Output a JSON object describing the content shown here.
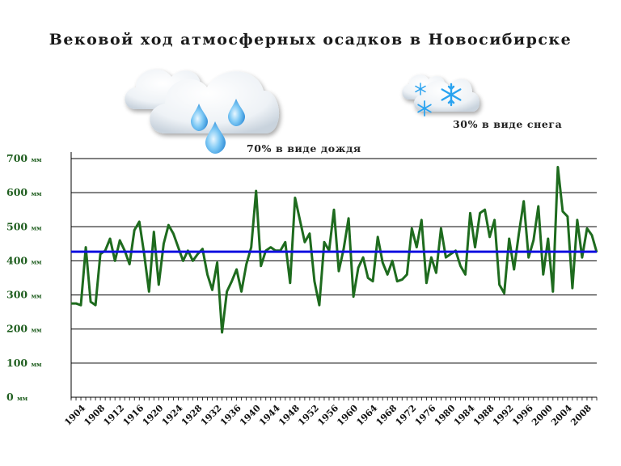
{
  "title": "Вековой ход атмосферных осадков в Новосибирске",
  "annotations": {
    "rain": "70% в виде дождя",
    "snow": "30% в виде снега"
  },
  "icons": [
    "rain-cloud-icon",
    "snow-cloud-icon"
  ],
  "colors": {
    "series_line": "#1e6b1e",
    "mean_line": "#1010e0",
    "grid": "#000000",
    "tick_text": "#1f5e1f",
    "snowflake": "#2aa3f0",
    "raindrop": "#2f97e6"
  },
  "chart_data": {
    "type": "line",
    "title": "Вековой ход атмосферных осадков в Новосибирске",
    "xlabel": "",
    "ylabel": "",
    "y_unit": "мм",
    "ylim": [
      0,
      700
    ],
    "yticks": [
      0,
      100,
      200,
      300,
      400,
      500,
      600,
      700
    ],
    "xtick_labels": [
      "1904",
      "1908",
      "1912",
      "1916",
      "1920",
      "1924",
      "1928",
      "1932",
      "1936",
      "1940",
      "1944",
      "1948",
      "1952",
      "1956",
      "1960",
      "1964",
      "1968",
      "1972",
      "1976",
      "1980",
      "1984",
      "1988",
      "1992",
      "1996",
      "2000",
      "2004",
      "2008"
    ],
    "grid": true,
    "x": [
      1901,
      1902,
      1903,
      1904,
      1905,
      1906,
      1907,
      1908,
      1909,
      1910,
      1911,
      1912,
      1913,
      1914,
      1915,
      1916,
      1917,
      1918,
      1919,
      1920,
      1921,
      1922,
      1923,
      1924,
      1925,
      1926,
      1927,
      1928,
      1929,
      1930,
      1931,
      1932,
      1933,
      1934,
      1935,
      1936,
      1937,
      1938,
      1939,
      1940,
      1941,
      1942,
      1943,
      1944,
      1945,
      1946,
      1947,
      1948,
      1949,
      1950,
      1951,
      1952,
      1953,
      1954,
      1955,
      1956,
      1957,
      1958,
      1959,
      1960,
      1961,
      1962,
      1963,
      1964,
      1965,
      1966,
      1967,
      1968,
      1969,
      1970,
      1971,
      1972,
      1973,
      1974,
      1975,
      1976,
      1977,
      1978,
      1979,
      1980,
      1981,
      1982,
      1983,
      1984,
      1985,
      1986,
      1987,
      1988,
      1989,
      1990,
      1991,
      1992,
      1993,
      1994,
      1995,
      1996,
      1997,
      1998,
      1999,
      2000,
      2001,
      2002,
      2003,
      2004,
      2005,
      2006,
      2007,
      2008,
      2009
    ],
    "series": [
      {
        "values": [
          275,
          275,
          270,
          440,
          280,
          270,
          420,
          430,
          465,
          400,
          460,
          430,
          390,
          490,
          515,
          420,
          310,
          485,
          330,
          450,
          505,
          480,
          440,
          400,
          430,
          400,
          420,
          435,
          360,
          315,
          395,
          190,
          310,
          340,
          375,
          310,
          390,
          440,
          605,
          385,
          430,
          440,
          430,
          430,
          455,
          335,
          585,
          520,
          455,
          480,
          340,
          270,
          455,
          430,
          550,
          370,
          435,
          525,
          295,
          380,
          410,
          350,
          340,
          470,
          395,
          360,
          400,
          340,
          345,
          360,
          495,
          440,
          520,
          335,
          410,
          365,
          495,
          410,
          420,
          430,
          385,
          360,
          540,
          440,
          540,
          550,
          470,
          520,
          330,
          305,
          465,
          375,
          480,
          575,
          410,
          460,
          560,
          360,
          465,
          310,
          675,
          545,
          530,
          320,
          520,
          410,
          495,
          475,
          425
        ]
      },
      {
        "name": "mean",
        "values": [
          427,
          427,
          427,
          427,
          427,
          427,
          427,
          427,
          427,
          427,
          427,
          427,
          427,
          427,
          427,
          427,
          427,
          427,
          427,
          427,
          427,
          427,
          427,
          427,
          427,
          427,
          427,
          427,
          427,
          427,
          427,
          427,
          427,
          427,
          427,
          427,
          427,
          427,
          427,
          427,
          427,
          427,
          427,
          427,
          427,
          427,
          427,
          427,
          427,
          427,
          427,
          427,
          427,
          427,
          427,
          427,
          427,
          427,
          427,
          427,
          427,
          427,
          427,
          427,
          427,
          427,
          427,
          427,
          427,
          427,
          427,
          427,
          427,
          427,
          427,
          427,
          427,
          427,
          427,
          427,
          427,
          427,
          427,
          427,
          427,
          427,
          427,
          427,
          427,
          427,
          427,
          427,
          427,
          427,
          427,
          427,
          427,
          427,
          427,
          427,
          427,
          427,
          427,
          427,
          427,
          427,
          427,
          427,
          427
        ]
      }
    ]
  }
}
